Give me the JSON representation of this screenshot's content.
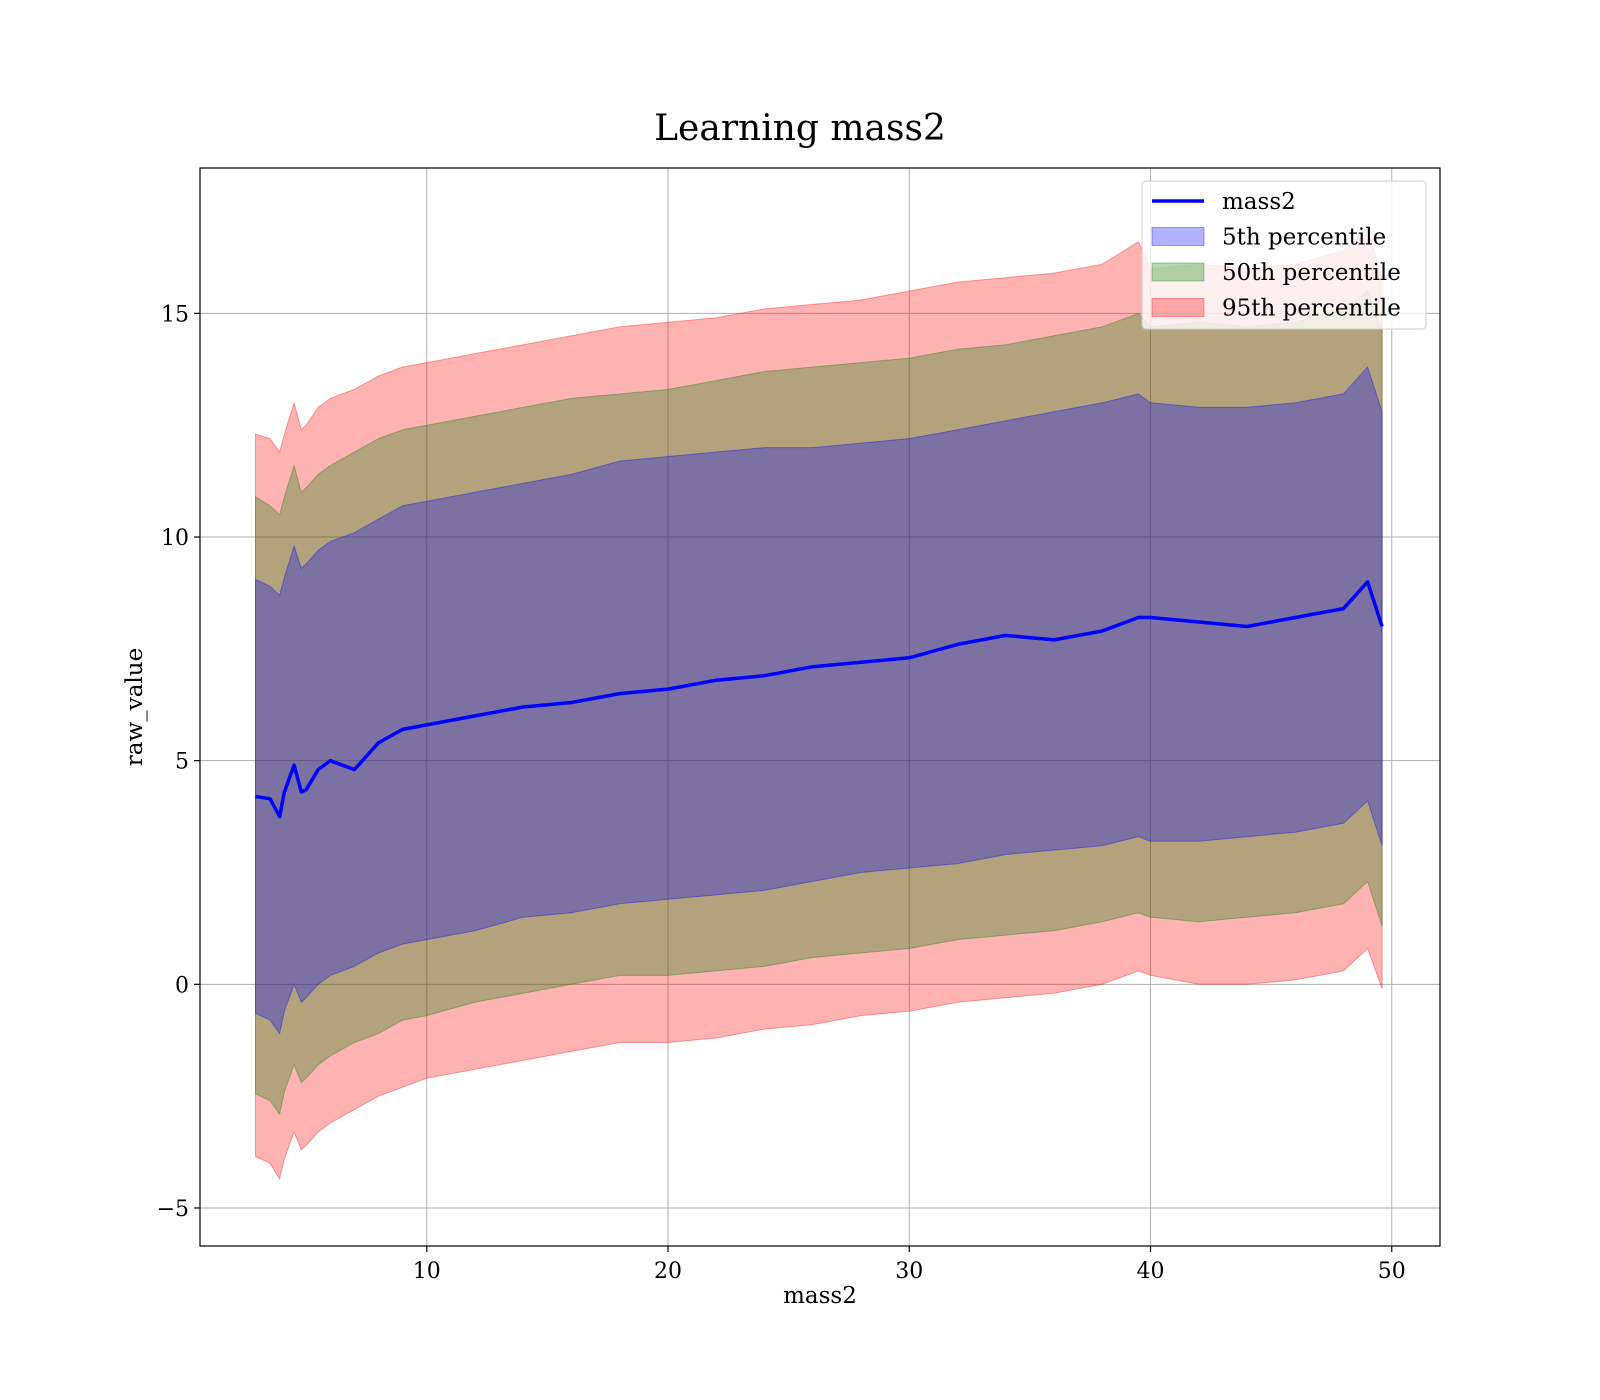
{
  "chart_data": {
    "type": "area",
    "title": "Learning mass2",
    "xlabel": "mass2",
    "ylabel": "raw_value",
    "xlim": [
      0.6,
      52.0
    ],
    "ylim": [
      -5.85,
      18.25
    ],
    "xticks": [
      {
        "value": 10,
        "label": "10"
      },
      {
        "value": 20,
        "label": "20"
      },
      {
        "value": 30,
        "label": "30"
      },
      {
        "value": 40,
        "label": "40"
      },
      {
        "value": 50,
        "label": "50"
      }
    ],
    "yticks": [
      {
        "value": -5,
        "label": "−5"
      },
      {
        "value": 0,
        "label": "0"
      },
      {
        "value": 5,
        "label": "5"
      },
      {
        "value": 10,
        "label": "10"
      },
      {
        "value": 15,
        "label": "15"
      }
    ],
    "grid": true,
    "legend_position": "top-right",
    "x": [
      2.9,
      3.5,
      3.9,
      4.1,
      4.5,
      4.8,
      5.0,
      5.5,
      6.0,
      7.0,
      8.0,
      9.0,
      10.0,
      12.0,
      14.0,
      16.0,
      18.0,
      20.0,
      22.0,
      24.0,
      26.0,
      28.0,
      30.0,
      32.0,
      34.0,
      36.0,
      38.0,
      39.5,
      40.0,
      42.0,
      44.0,
      46.0,
      48.0,
      49.0,
      49.6
    ],
    "series": [
      {
        "name": "mass2",
        "kind": "line",
        "color": "#0000ff",
        "values": [
          4.2,
          4.15,
          3.75,
          4.3,
          4.9,
          4.3,
          4.35,
          4.8,
          5.0,
          4.8,
          5.4,
          5.7,
          5.8,
          6.0,
          6.2,
          6.3,
          6.5,
          6.6,
          6.8,
          6.9,
          7.1,
          7.2,
          7.3,
          7.6,
          7.8,
          7.7,
          7.9,
          8.2,
          8.2,
          8.1,
          8.0,
          8.2,
          8.4,
          9.0,
          8.0
        ]
      },
      {
        "name": "5th percentile",
        "kind": "band",
        "color": "#0000ff",
        "upper": [
          9.05,
          8.9,
          8.7,
          9.1,
          9.8,
          9.3,
          9.4,
          9.7,
          9.9,
          10.1,
          10.4,
          10.7,
          10.8,
          11.0,
          11.2,
          11.4,
          11.7,
          11.8,
          11.9,
          12.0,
          12.0,
          12.1,
          12.2,
          12.4,
          12.6,
          12.8,
          13.0,
          13.2,
          13.0,
          12.9,
          12.9,
          13.0,
          13.2,
          13.8,
          12.8
        ],
        "lower": [
          -0.65,
          -0.8,
          -1.1,
          -0.6,
          0.0,
          -0.4,
          -0.3,
          0.0,
          0.2,
          0.4,
          0.7,
          0.9,
          1.0,
          1.2,
          1.5,
          1.6,
          1.8,
          1.9,
          2.0,
          2.1,
          2.3,
          2.5,
          2.6,
          2.7,
          2.9,
          3.0,
          3.1,
          3.3,
          3.2,
          3.2,
          3.3,
          3.4,
          3.6,
          4.1,
          3.1
        ]
      },
      {
        "name": "50th percentile",
        "kind": "band",
        "color": "#008000",
        "upper": [
          10.9,
          10.7,
          10.5,
          10.9,
          11.6,
          11.0,
          11.1,
          11.4,
          11.6,
          11.9,
          12.2,
          12.4,
          12.5,
          12.7,
          12.9,
          13.1,
          13.2,
          13.3,
          13.5,
          13.7,
          13.8,
          13.9,
          14.0,
          14.2,
          14.3,
          14.5,
          14.7,
          15.0,
          14.7,
          14.8,
          14.7,
          14.8,
          15.1,
          15.5,
          14.6
        ],
        "lower": [
          -2.45,
          -2.6,
          -2.9,
          -2.4,
          -1.8,
          -2.2,
          -2.1,
          -1.8,
          -1.6,
          -1.3,
          -1.1,
          -0.8,
          -0.7,
          -0.4,
          -0.2,
          0.0,
          0.2,
          0.2,
          0.3,
          0.4,
          0.6,
          0.7,
          0.8,
          1.0,
          1.1,
          1.2,
          1.4,
          1.6,
          1.5,
          1.4,
          1.5,
          1.6,
          1.8,
          2.3,
          1.3
        ]
      },
      {
        "name": "95th percentile",
        "kind": "band",
        "color": "#ff0000",
        "upper": [
          12.3,
          12.2,
          11.9,
          12.3,
          13.0,
          12.4,
          12.5,
          12.9,
          13.1,
          13.3,
          13.6,
          13.8,
          13.9,
          14.1,
          14.3,
          14.5,
          14.7,
          14.8,
          14.9,
          15.1,
          15.2,
          15.3,
          15.5,
          15.7,
          15.8,
          15.9,
          16.1,
          16.6,
          16.0,
          16.1,
          16.0,
          16.1,
          16.4,
          16.9,
          15.8
        ],
        "lower": [
          -3.85,
          -4.0,
          -4.35,
          -3.9,
          -3.3,
          -3.7,
          -3.6,
          -3.3,
          -3.1,
          -2.8,
          -2.5,
          -2.3,
          -2.1,
          -1.9,
          -1.7,
          -1.5,
          -1.3,
          -1.3,
          -1.2,
          -1.0,
          -0.9,
          -0.7,
          -0.6,
          -0.4,
          -0.3,
          -0.2,
          0.0,
          0.3,
          0.2,
          0.0,
          0.0,
          0.1,
          0.3,
          0.8,
          -0.1
        ]
      }
    ],
    "legend": [
      {
        "label": "mass2",
        "kind": "line",
        "color": "#0000ff"
      },
      {
        "label": "5th percentile",
        "kind": "patch",
        "color": "#0000ff"
      },
      {
        "label": "50th percentile",
        "kind": "patch",
        "color": "#008000"
      },
      {
        "label": "95th percentile",
        "kind": "patch",
        "color": "#ff0000"
      }
    ]
  }
}
